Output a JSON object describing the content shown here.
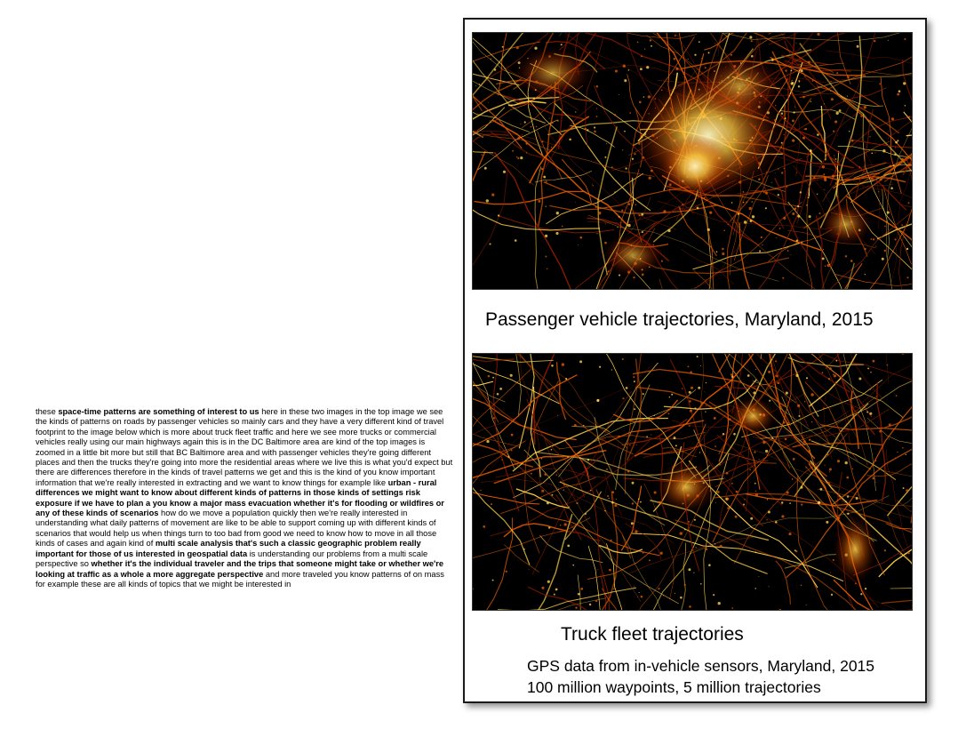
{
  "notes": {
    "segments": [
      {
        "text": "these ",
        "bold": false
      },
      {
        "text": "space-time patterns are something of interest to us",
        "bold": true
      },
      {
        "text": " here in these two images in the top image we see the kinds of patterns on roads by passenger vehicles so mainly cars and they have a very different kind of travel footprint to the image below which is more about truck fleet traffic and here we see more trucks or commercial vehicles really using our main highways again this is in the DC Baltimore area are kind of the top images is zoomed in a little bit more but still that BC Baltimore area and with passenger vehicles they're going different places and then the trucks they're going into more the residential areas where we live this is what you'd expect but there are differences therefore in the kinds of travel patterns we get and this is the kind of you know important information that we're really interested in extracting and we want to know things for example like ",
        "bold": false
      },
      {
        "text": "urban - rural differences we might want to know about different kinds of patterns in those kinds of settings risk exposure if we have to plan a you know a major mass evacuation whether it's for flooding or wildfires or any of these kinds of scenarios",
        "bold": true
      },
      {
        "text": " how do we move a population quickly then we're really interested in understanding what daily patterns of movement are like to be able to support coming up with different kinds of scenarios that would help us when things turn to too bad from good we need to know how to move in all those kinds of cases and again kind of ",
        "bold": false
      },
      {
        "text": "multi scale analysis that's such a classic geographic problem really important for those of us interested in geospatial data",
        "bold": true
      },
      {
        "text": " is understanding our problems from a multi scale perspective so ",
        "bold": false
      },
      {
        "text": "whether it's the individual traveler and the trips that someone might take or whether we're looking at traffic as a whole a more aggregate perspective",
        "bold": true
      },
      {
        "text": " and more traveled you know patterns of on mass for example these are all kinds of topics that we might be interested in",
        "bold": false
      }
    ]
  },
  "slide": {
    "caption_passenger": "Passenger vehicle trajectories, Maryland, 2015",
    "caption_truck": "Truck fleet trajectories",
    "caption_source": "GPS data from in-vehicle sensors, Maryland, 2015",
    "caption_counts": "100 million waypoints, 5 million trajectories"
  },
  "colors": {
    "map_background": "#000000",
    "trajectory_dim": "#8a1a00",
    "trajectory_mid": "#e05a00",
    "trajectory_bright": "#ffd24a",
    "trajectory_core": "#fff6c0"
  }
}
